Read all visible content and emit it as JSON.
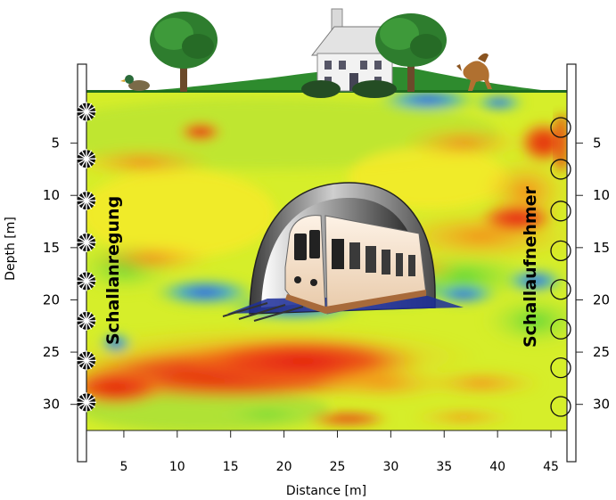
{
  "axes": {
    "xlabel": "Distance [m]",
    "ylabel": "Depth [m]",
    "x_ticks": [
      5,
      10,
      15,
      20,
      25,
      30,
      35,
      40,
      45
    ],
    "y_ticks": [
      5,
      10,
      15,
      20,
      25,
      30
    ],
    "x_range": [
      1.5,
      46.5
    ],
    "y_range": [
      0,
      32.5
    ]
  },
  "labels": {
    "source_borehole": "Schallanregung",
    "receiver_borehole": "Schallaufnehmer"
  },
  "sources": {
    "depths": [
      2,
      6.5,
      10.5,
      14.5,
      18.2,
      22,
      25.8,
      29.8
    ],
    "icon": "starburst-icon"
  },
  "receivers": {
    "depths": [
      3.5,
      7.5,
      11.5,
      15.3,
      19,
      22.8,
      26.5,
      30.2
    ],
    "icon": "circle-icon"
  },
  "scene": {
    "surface_items": [
      "duck",
      "tree",
      "house",
      "tree",
      "horse"
    ],
    "center_object": "train-in-tunnel"
  },
  "colorscale": {
    "high": "#e31a10",
    "mid_high": "#f6a21a",
    "mid": "#f4e92a",
    "mid_low": "#92dd3c",
    "low": "#1f3cf0"
  }
}
